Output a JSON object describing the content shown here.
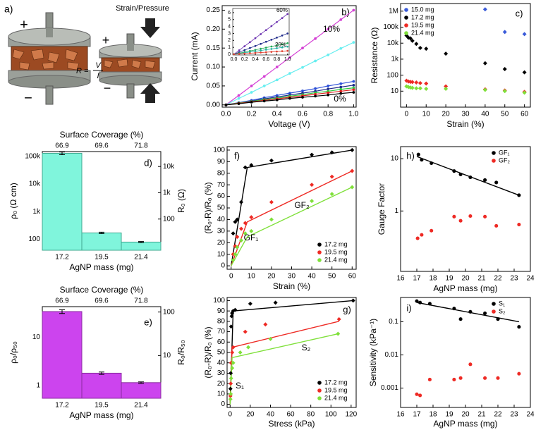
{
  "schematic": {
    "panel_label": "a)",
    "left_terminals": [
      "+",
      "−"
    ],
    "right_terminals": [
      "+",
      "−"
    ],
    "load_label": "Strain/Pressure",
    "formula": {
      "lhs": "R =",
      "numerator": "V",
      "denominator": "I"
    }
  },
  "chart_data": [
    {
      "type": "line",
      "panel_label": "b)",
      "xlabel": "Voltage (V)",
      "ylabel": "Current (mA)",
      "xlim": [
        -0.03,
        1.02
      ],
      "ylim": [
        -0.006,
        0.262
      ],
      "xticks": [
        {
          "value": 0,
          "label": "0.0"
        },
        0.2,
        0.4,
        0.6,
        0.8,
        {
          "value": 1,
          "label": "1.0"
        }
      ],
      "yticks": [
        {
          "value": 0,
          "label": "0.00"
        },
        0.05,
        {
          "value": 0.1,
          "label": "0.10"
        },
        0.15,
        {
          "value": 0.2,
          "label": "0.20"
        },
        0.25
      ],
      "x": [
        0,
        0.1,
        0.2,
        0.3,
        0.4,
        0.5,
        0.6,
        0.7,
        0.8,
        0.9,
        1
      ],
      "series": [
        {
          "color": "#d43fd4",
          "values": [
            0,
            0.025,
            0.05,
            0.075,
            0.1,
            0.125,
            0.15,
            0.175,
            0.2,
            0.225,
            0.25
          ]
        },
        {
          "color": "#66eef0",
          "values": [
            0,
            0.017,
            0.033,
            0.05,
            0.066,
            0.083,
            0.099,
            0.116,
            0.132,
            0.149,
            0.165
          ]
        },
        {
          "color": "#2b4fd8",
          "values": [
            0,
            0.006,
            0.012,
            0.019,
            0.025,
            0.031,
            0.037,
            0.043,
            0.05,
            0.056,
            0.062
          ]
        },
        {
          "color": "#1f2a8a",
          "values": [
            0,
            0.005,
            0.01,
            0.016,
            0.021,
            0.026,
            0.031,
            0.036,
            0.042,
            0.047,
            0.052
          ]
        },
        {
          "color": "#2ecc40",
          "values": [
            0,
            0.005,
            0.009,
            0.014,
            0.018,
            0.023,
            0.027,
            0.032,
            0.036,
            0.041,
            0.045
          ]
        },
        {
          "color": "#e02020",
          "values": [
            0,
            0.004,
            0.008,
            0.012,
            0.016,
            0.02,
            0.024,
            0.028,
            0.032,
            0.036,
            0.04
          ]
        },
        {
          "color": "#000000",
          "values": [
            0,
            0.003,
            0.007,
            0.01,
            0.013,
            0.017,
            0.02,
            0.023,
            0.026,
            0.03,
            0.033
          ]
        }
      ],
      "annotations": [
        {
          "text": "10%",
          "color": "#d43fd4"
        },
        {
          "text": "0%",
          "color": "#000000"
        }
      ]
    },
    {
      "type": "line",
      "xlim": [
        -0.02,
        1.03
      ],
      "ylim": [
        -0.1,
        6.6
      ],
      "xticks": [
        {
          "value": 0,
          "label": "0.0"
        },
        0.2,
        0.4,
        0.6,
        0.8,
        {
          "value": 1,
          "label": "1.0"
        }
      ],
      "yticks": [
        0,
        1,
        2,
        3,
        4,
        5,
        6
      ],
      "x": [
        0,
        0.1,
        0.2,
        0.3,
        0.4,
        0.5,
        0.6,
        0.7,
        0.8,
        0.9,
        1
      ],
      "series": [
        {
          "color": "#6a2fb0",
          "values": [
            0,
            0.58,
            1.16,
            1.74,
            2.32,
            2.9,
            3.48,
            4.06,
            4.64,
            5.22,
            5.8
          ]
        },
        {
          "color": "#1f2a8a",
          "values": [
            0,
            0.3,
            0.6,
            0.9,
            1.2,
            1.5,
            1.8,
            2.1,
            2.4,
            2.7,
            3
          ]
        },
        {
          "color": "#22aa55",
          "values": [
            0,
            0.16,
            0.32,
            0.48,
            0.64,
            0.8,
            0.96,
            1.12,
            1.28,
            1.44,
            1.6
          ]
        },
        {
          "color": "#20b0a0",
          "values": [
            0,
            0.11,
            0.22,
            0.33,
            0.44,
            0.55,
            0.66,
            0.77,
            0.88,
            0.99,
            1.1
          ]
        },
        {
          "color": "#e04030",
          "values": [
            0,
            0.05,
            0.1,
            0.15,
            0.2,
            0.25,
            0.3,
            0.35,
            0.4,
            0.45,
            0.5
          ]
        }
      ],
      "annotations": [
        {
          "text": "60%",
          "color": "#6a2fb0"
        },
        {
          "text": "20%",
          "color": "#e04030"
        }
      ]
    },
    {
      "type": "scatter",
      "marker": "diamond",
      "panel_label": "c)",
      "xlabel": "Strain (%)",
      "ylabel": "Resistance (Ω)",
      "xlim": [
        -3,
        63
      ],
      "ylim": [
        1,
        3000000
      ],
      "ylog": true,
      "xticks": [
        0,
        10,
        20,
        30,
        40,
        50,
        60
      ],
      "yticks": [
        10,
        100,
        {
          "value": 1000,
          "label": "1k"
        },
        {
          "value": 10000,
          "label": "10k"
        },
        {
          "value": 100000,
          "label": "100k"
        },
        {
          "value": 1000000,
          "label": "1M"
        }
      ],
      "x": [
        0,
        1,
        2,
        3,
        5,
        7,
        10,
        20,
        40,
        50,
        60
      ],
      "legend": "upper left",
      "series": [
        {
          "name": "15.0 mg",
          "color": "#3a5bd9",
          "values": [
            null,
            null,
            null,
            null,
            null,
            null,
            null,
            null,
            1300000,
            50000,
            37000
          ]
        },
        {
          "name": "17.2 mg",
          "color": "#000000",
          "values": [
            30000,
            22000,
            20000,
            14000,
            9000,
            5000,
            4500,
            2200,
            550,
            240,
            150
          ]
        },
        {
          "name": "19.5 mg",
          "color": "#ee2a24",
          "values": [
            45,
            40,
            38,
            37,
            35,
            32,
            30,
            20,
            13,
            11,
            9
          ]
        },
        {
          "name": "21.4 mg",
          "color": "#7fe03a",
          "values": [
            20,
            18,
            17,
            16,
            15,
            15,
            14,
            14,
            12,
            10,
            8
          ]
        }
      ]
    },
    {
      "type": "bar",
      "panel_label": "d)",
      "xlabel": "AgNP mass (mg)",
      "ylabel": "ρ₀ (Ω cm)",
      "y2label": "R₀ (Ω)",
      "top_label": "Surface Coverage (%)",
      "top_categories": [
        "66.9",
        "69.6",
        "71.8"
      ],
      "categories": [
        "17.2",
        "19.5",
        "21.4"
      ],
      "values": [
        130000,
        170,
        79
      ],
      "errors": [
        15000,
        10,
        4
      ],
      "color": "#80f5dc",
      "edgecolor": "#3fa88f",
      "ylim": [
        40,
        150000
      ],
      "ylog": true,
      "yticks": [
        100,
        {
          "value": 1000,
          "label": "1k"
        },
        {
          "value": 10000,
          "label": "10k"
        },
        {
          "value": 100000,
          "label": "100k"
        }
      ],
      "y2lim": [
        6.5,
        37000
      ],
      "y2log": true,
      "y2ticks": [
        100,
        {
          "value": 1000,
          "label": "1k"
        },
        {
          "value": 10000,
          "label": "10k"
        }
      ]
    },
    {
      "type": "scatter",
      "marker": "diamond",
      "panel_label": "f)",
      "xlabel": "Strain (%)",
      "ylabel": "(R₀-R)/R₀ (%)",
      "xlim": [
        -2,
        62
      ],
      "ylim": [
        -3,
        103
      ],
      "xticks": [
        0,
        10,
        20,
        30,
        40,
        50,
        60
      ],
      "yticks": [
        0,
        10,
        20,
        30,
        40,
        50,
        60,
        70,
        80,
        90,
        100
      ],
      "x": [
        1,
        2,
        3,
        5,
        7,
        10,
        20,
        40,
        50,
        60
      ],
      "legend": "lower right",
      "series": [
        {
          "name": "17.2 mg",
          "color": "#000000",
          "values": [
            28,
            38,
            40,
            55,
            85,
            87,
            91,
            96,
            98,
            100
          ]
        },
        {
          "name": "19.5 mg",
          "color": "#ee2a24",
          "values": [
            10,
            17,
            25,
            32,
            37,
            42,
            55,
            70,
            77,
            82
          ]
        },
        {
          "name": "21.4 mg",
          "color": "#7fe03a",
          "values": [
            5,
            10,
            16,
            22,
            28,
            30,
            40,
            56,
            62,
            68
          ]
        }
      ],
      "fits": [
        {
          "color": "#000000",
          "x": [
            0,
            8,
            60
          ],
          "values": [
            0,
            85,
            100
          ]
        },
        {
          "color": "#ee2a24",
          "x": [
            0,
            8,
            60
          ],
          "values": [
            0,
            38,
            82
          ]
        },
        {
          "color": "#7fe03a",
          "x": [
            0,
            8,
            60
          ],
          "values": [
            0,
            25,
            68
          ]
        }
      ],
      "annotations": [
        {
          "text": "GF₁",
          "color": "#000000"
        },
        {
          "text": "GF₂",
          "color": "#000000"
        }
      ]
    },
    {
      "type": "scatter",
      "marker": "circle",
      "panel_label": "h)",
      "xlabel": "AgNP mass (mg)",
      "ylabel": "Gauge Factor",
      "xlim": [
        16,
        24
      ],
      "ylim": [
        0.07,
        17
      ],
      "ylog": true,
      "xticks": [
        16,
        17,
        18,
        19,
        20,
        21,
        22,
        23,
        24
      ],
      "yticks": [
        1,
        10
      ],
      "legend": "upper right",
      "series": [
        {
          "name": "GF₁",
          "color": "#000000",
          "x": [
            17.1,
            17.3,
            17.9,
            19.3,
            19.7,
            20.3,
            21.2,
            21.9,
            23.3
          ],
          "values": [
            12,
            9.5,
            8.2,
            5.8,
            5,
            4.4,
            3.9,
            3.5,
            2
          ]
        },
        {
          "name": "GF₂",
          "color": "#ee2a24",
          "x": [
            17.05,
            17.3,
            17.9,
            19.3,
            19.7,
            20.3,
            21.2,
            21.9,
            23.3
          ],
          "values": [
            0.3,
            0.35,
            0.42,
            0.78,
            0.65,
            0.8,
            0.78,
            0.52,
            0.55
          ]
        }
      ],
      "fits": [
        {
          "color": "#000000",
          "x": [
            17,
            23.3
          ],
          "values": [
            11,
            2
          ]
        }
      ]
    },
    {
      "type": "bar",
      "panel_label": "e)",
      "xlabel": "AgNP mass (mg)",
      "ylabel": "ρ₀/ρ₅₀",
      "y2label": "R₀/R₅₀",
      "top_label": "Surface Coverage (%)",
      "top_categories": [
        "66.9",
        "69.6",
        "71.8"
      ],
      "categories": [
        "17.2",
        "19.5",
        "21.4"
      ],
      "values": [
        34,
        1.79,
        1.14
      ],
      "errors": [
        3,
        0.1,
        0.04
      ],
      "color": "#cc44ee",
      "edgecolor": "#8a2aa0",
      "ylim": [
        0.54,
        43
      ],
      "ylog": true,
      "yticks": [
        1,
        10
      ],
      "y2lim": [
        1.04,
        133
      ],
      "y2log": true,
      "y2ticks": [
        10,
        100
      ]
    },
    {
      "type": "scatter",
      "marker": "diamond",
      "panel_label": "g)",
      "xlabel": "Stress (kPa)",
      "ylabel": "(R₀-R)/R₀ (%)",
      "xlim": [
        -3,
        125
      ],
      "ylim": [
        -3,
        103
      ],
      "xticks": [
        0,
        20,
        40,
        60,
        80,
        100,
        120
      ],
      "yticks": [
        0,
        10,
        20,
        30,
        40,
        50,
        60,
        70,
        80,
        90,
        100
      ],
      "legend": "lower right",
      "series": [
        {
          "name": "17.2 mg",
          "color": "#000000",
          "x": [
            0.3,
            0.6,
            1,
            1.5,
            2,
            3,
            5,
            20,
            45,
            122
          ],
          "values": [
            15,
            30,
            75,
            85,
            88,
            90,
            91,
            97,
            98,
            100
          ]
        },
        {
          "name": "19.5 mg",
          "color": "#ee2a24",
          "x": [
            0.3,
            0.6,
            1,
            2,
            3,
            15,
            35,
            108
          ],
          "values": [
            8,
            20,
            40,
            50,
            55,
            70,
            77,
            82
          ]
        },
        {
          "name": "21.4 mg",
          "color": "#7fe03a",
          "x": [
            0.3,
            0.6,
            1,
            2,
            3,
            10,
            18,
            40,
            107
          ],
          "values": [
            5,
            10,
            25,
            35,
            40,
            50,
            55,
            63,
            68
          ]
        }
      ],
      "fits": [
        {
          "color": "#000000",
          "x": [
            0,
            3,
            122
          ],
          "values": [
            0,
            90,
            100
          ]
        },
        {
          "color": "#ee2a24",
          "x": [
            0,
            2,
            108
          ],
          "values": [
            0,
            55,
            80
          ]
        },
        {
          "color": "#7fe03a",
          "x": [
            0,
            2,
            107
          ],
          "values": [
            0,
            45,
            68
          ]
        }
      ],
      "annotations": [
        {
          "text": "S₁",
          "color": "#000000"
        },
        {
          "text": "S₂",
          "color": "#000000"
        }
      ]
    },
    {
      "type": "scatter",
      "marker": "circle",
      "panel_label": "i)",
      "xlabel": "AgNP mass (mg)",
      "ylabel": "Sensitivity (kPa⁻¹)",
      "xlim": [
        16,
        24
      ],
      "ylim": [
        0.00026,
        0.54
      ],
      "ylog": true,
      "xticks": [
        16,
        17,
        18,
        19,
        20,
        21,
        22,
        23,
        24
      ],
      "yticks": [
        0.001,
        0.01,
        0.1
      ],
      "legend": "upper right",
      "series": [
        {
          "name": "S₁",
          "color": "#000000",
          "x": [
            17,
            17.2,
            17.8,
            19.3,
            19.7,
            20.3,
            21.2,
            22,
            23.3
          ],
          "values": [
            0.42,
            0.38,
            0.35,
            0.25,
            0.12,
            0.2,
            0.18,
            0.12,
            0.07
          ]
        },
        {
          "name": "S₂",
          "color": "#ee2a24",
          "x": [
            17,
            17.2,
            17.8,
            19.3,
            19.7,
            20.3,
            21.2,
            22,
            23.3
          ],
          "values": [
            0.00065,
            0.0006,
            0.0018,
            0.0018,
            0.002,
            0.0052,
            0.002,
            0.002,
            0.0027
          ]
        }
      ],
      "fits": [
        {
          "color": "#000000",
          "x": [
            17,
            23.3
          ],
          "values": [
            0.38,
            0.1
          ]
        }
      ]
    }
  ]
}
